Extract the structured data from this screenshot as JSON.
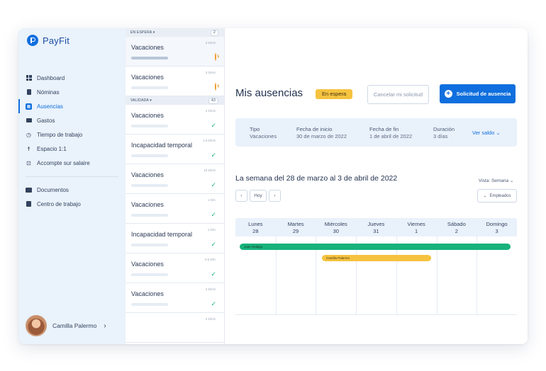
{
  "app": {
    "name": "PayFit"
  },
  "sidebar": {
    "items": [
      {
        "label": "Dashboard",
        "icon": "dashboard-icon"
      },
      {
        "label": "Nóminas",
        "icon": "document-icon"
      },
      {
        "label": "Ausencias",
        "icon": "calendar-icon",
        "active": true
      },
      {
        "label": "Gastos",
        "icon": "receipt-icon"
      },
      {
        "label": "Tiempo de trabajo",
        "icon": "clock-icon"
      },
      {
        "label": "Espacio 1:1",
        "icon": "person-icon"
      },
      {
        "label": "Accompte sur salaire",
        "icon": "money-icon"
      }
    ],
    "secondary": [
      {
        "label": "Documentos",
        "icon": "folder-icon"
      },
      {
        "label": "Centro de trabajo",
        "icon": "badge-icon"
      }
    ],
    "user": {
      "name": "Camilla Palermo"
    }
  },
  "requests": {
    "pending": {
      "header": "EN ESPERA",
      "count": "2",
      "items": [
        {
          "title": "Vacaciones",
          "days": "3 DÍAS",
          "status": "clock-icon"
        },
        {
          "title": "Vacaciones",
          "days": "3 DÍAS",
          "status": "clock-icon"
        }
      ]
    },
    "validated": {
      "header": "VALIDADA",
      "count": "43",
      "items": [
        {
          "title": "Vacaciones",
          "days": "4 DÍAS",
          "status": "check-icon"
        },
        {
          "title": "Incapacidad temporal",
          "days": "1.5 DÍAS",
          "status": "check-icon"
        },
        {
          "title": "Vacaciones",
          "days": "10 DÍAS",
          "status": "check-icon"
        },
        {
          "title": "Vacaciones",
          "days": "1 DÍA",
          "status": "check-icon"
        },
        {
          "title": "Incapacidad temporal",
          "days": "1 DÍA",
          "status": "check-icon"
        },
        {
          "title": "Vacaciones",
          "days": "0.5 DÍA",
          "status": "check-icon"
        },
        {
          "title": "Vacaciones",
          "days": "2 DÍAS",
          "status": "check-icon"
        },
        {
          "title": "",
          "days": "2 DÍAS",
          "status": ""
        }
      ]
    }
  },
  "main": {
    "title": "Mis ausencias",
    "status_badge": "En espera",
    "cancel_label": "Cancelar mi solicitud",
    "primary_label": "Solicitud de ausencia",
    "summary": {
      "tipo_label": "Tipo",
      "tipo_value": "Vacaciones",
      "inicio_label": "Fecha de inicio",
      "inicio_value": "30 de marzo de 2022",
      "fin_label": "Fecha de fin",
      "fin_value": "1 de abril de 2022",
      "duracion_label": "Duración",
      "duracion_value": "3 días",
      "saldo_link": "Ver saldo"
    },
    "week_title": "La semana del 28 de marzo al 3 de abril de 2022",
    "view_select": "Vista: Semana",
    "today_label": "Hoy",
    "employees_label": "Empleados",
    "days": [
      {
        "name": "Lunes",
        "num": "28"
      },
      {
        "name": "Martes",
        "num": "29"
      },
      {
        "name": "Miércoles",
        "num": "30"
      },
      {
        "name": "Jueves",
        "num": "31"
      },
      {
        "name": "Viernes",
        "num": "1"
      },
      {
        "name": "Sábado",
        "num": "2"
      },
      {
        "name": "Domingo",
        "num": "3"
      }
    ],
    "events": [
      {
        "name": "Juan Hidalgo",
        "color": "#17b27c"
      },
      {
        "name": "Camilla Palermo",
        "color": "#f6c33f"
      }
    ]
  },
  "colors": {
    "brand": "#0f6fde",
    "pending": "#f6c33f",
    "validated": "#17b27c"
  }
}
